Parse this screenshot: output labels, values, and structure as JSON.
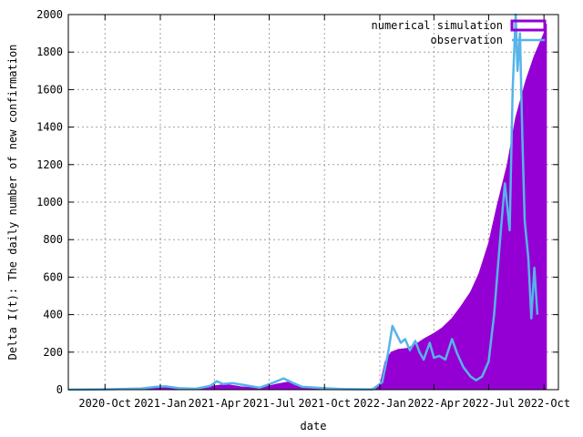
{
  "chart_data": {
    "type": "area",
    "title": "",
    "xlabel": "date",
    "ylabel": "Delta I(t): The daily number of new confirmation",
    "ylim": [
      0,
      2000
    ],
    "xlim": [
      "2020-08-01",
      "2022-10-25"
    ],
    "x_ticks": [
      {
        "date": "2020-10-01",
        "label": "2020-Oct"
      },
      {
        "date": "2021-01-01",
        "label": "2021-Jan"
      },
      {
        "date": "2021-04-01",
        "label": "2021-Apr"
      },
      {
        "date": "2021-07-01",
        "label": "2021-Jul"
      },
      {
        "date": "2021-10-01",
        "label": "2021-Oct"
      },
      {
        "date": "2022-01-01",
        "label": "2022-Jan"
      },
      {
        "date": "2022-04-01",
        "label": "2022-Apr"
      },
      {
        "date": "2022-07-01",
        "label": "2022-Jul"
      },
      {
        "date": "2022-10-01",
        "label": "2022-Oct"
      }
    ],
    "y_ticks": [
      0,
      200,
      400,
      600,
      800,
      1000,
      1200,
      1400,
      1600,
      1800,
      2000
    ],
    "grid": true,
    "legend_position": "top-right",
    "series": [
      {
        "name": "numerical simulation",
        "style": "filled boxes",
        "color": "#9400d3",
        "points": [
          [
            "2020-08-01",
            0
          ],
          [
            "2020-09-01",
            0
          ],
          [
            "2020-11-15",
            2
          ],
          [
            "2020-12-20",
            10
          ],
          [
            "2021-01-05",
            12
          ],
          [
            "2021-02-01",
            6
          ],
          [
            "2021-03-01",
            5
          ],
          [
            "2021-04-01",
            20
          ],
          [
            "2021-04-20",
            28
          ],
          [
            "2021-05-15",
            15
          ],
          [
            "2021-06-15",
            8
          ],
          [
            "2021-07-15",
            30
          ],
          [
            "2021-08-01",
            40
          ],
          [
            "2021-08-15",
            20
          ],
          [
            "2021-09-01",
            8
          ],
          [
            "2021-10-01",
            5
          ],
          [
            "2021-11-01",
            2
          ],
          [
            "2021-12-15",
            2
          ],
          [
            "2022-01-01",
            20
          ],
          [
            "2022-01-10",
            150
          ],
          [
            "2022-01-20",
            200
          ],
          [
            "2022-02-01",
            215
          ],
          [
            "2022-02-15",
            220
          ],
          [
            "2022-03-01",
            240
          ],
          [
            "2022-03-15",
            270
          ],
          [
            "2022-04-01",
            300
          ],
          [
            "2022-04-15",
            330
          ],
          [
            "2022-05-01",
            380
          ],
          [
            "2022-05-15",
            440
          ],
          [
            "2022-06-01",
            520
          ],
          [
            "2022-06-15",
            620
          ],
          [
            "2022-07-01",
            780
          ],
          [
            "2022-07-15",
            980
          ],
          [
            "2022-08-01",
            1200
          ],
          [
            "2022-08-15",
            1450
          ],
          [
            "2022-09-01",
            1650
          ],
          [
            "2022-09-15",
            1780
          ],
          [
            "2022-10-01",
            1900
          ],
          [
            "2022-10-05",
            1950
          ]
        ]
      },
      {
        "name": "observation",
        "style": "line",
        "color": "#56b4e9",
        "points": [
          [
            "2020-08-01",
            0
          ],
          [
            "2020-10-01",
            2
          ],
          [
            "2020-12-01",
            6
          ],
          [
            "2020-12-25",
            15
          ],
          [
            "2021-01-10",
            18
          ],
          [
            "2021-02-01",
            8
          ],
          [
            "2021-03-01",
            5
          ],
          [
            "2021-03-25",
            20
          ],
          [
            "2021-04-05",
            45
          ],
          [
            "2021-04-15",
            30
          ],
          [
            "2021-05-01",
            35
          ],
          [
            "2021-05-20",
            25
          ],
          [
            "2021-06-15",
            10
          ],
          [
            "2021-07-10",
            40
          ],
          [
            "2021-07-25",
            60
          ],
          [
            "2021-08-10",
            35
          ],
          [
            "2021-08-25",
            15
          ],
          [
            "2021-10-01",
            8
          ],
          [
            "2021-11-01",
            3
          ],
          [
            "2021-12-20",
            2
          ],
          [
            "2022-01-05",
            40
          ],
          [
            "2022-01-15",
            200
          ],
          [
            "2022-01-22",
            340
          ],
          [
            "2022-01-28",
            300
          ],
          [
            "2022-02-05",
            250
          ],
          [
            "2022-02-12",
            270
          ],
          [
            "2022-02-20",
            210
          ],
          [
            "2022-03-01",
            260
          ],
          [
            "2022-03-08",
            200
          ],
          [
            "2022-03-15",
            160
          ],
          [
            "2022-03-25",
            250
          ],
          [
            "2022-04-01",
            170
          ],
          [
            "2022-04-10",
            180
          ],
          [
            "2022-04-20",
            160
          ],
          [
            "2022-05-01",
            270
          ],
          [
            "2022-05-10",
            190
          ],
          [
            "2022-05-20",
            120
          ],
          [
            "2022-06-01",
            70
          ],
          [
            "2022-06-10",
            50
          ],
          [
            "2022-06-20",
            70
          ],
          [
            "2022-07-01",
            150
          ],
          [
            "2022-07-10",
            400
          ],
          [
            "2022-07-20",
            800
          ],
          [
            "2022-07-28",
            1100
          ],
          [
            "2022-08-05",
            850
          ],
          [
            "2022-08-10",
            1600
          ],
          [
            "2022-08-15",
            2000
          ],
          [
            "2022-08-18",
            1700
          ],
          [
            "2022-08-22",
            1900
          ],
          [
            "2022-08-26",
            1350
          ],
          [
            "2022-08-30",
            900
          ],
          [
            "2022-09-05",
            700
          ],
          [
            "2022-09-10",
            380
          ],
          [
            "2022-09-15",
            650
          ],
          [
            "2022-09-20",
            400
          ]
        ]
      }
    ]
  }
}
